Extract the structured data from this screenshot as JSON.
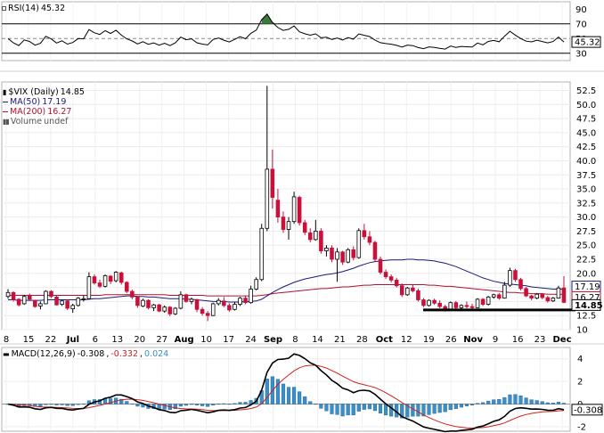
{
  "chart_data": [
    {
      "panel": "rsi",
      "type": "line",
      "title": "RSI(14)",
      "last_value": "45.32",
      "value_label": "45.32",
      "ticks": [
        "90",
        "70",
        "50",
        "30"
      ],
      "ylim": [
        20,
        100
      ],
      "overbought": 70,
      "oversold": 30,
      "colors": {
        "line": "#000000",
        "fill": "#3a7a3a"
      }
    },
    {
      "panel": "price",
      "type": "candlestick",
      "symbol": "$VIX",
      "title": "$VIX (Daily)",
      "last_value": "14.85",
      "legend": [
        {
          "label": "$VIX (Daily)",
          "value": "14.85",
          "color": "#000000",
          "icon": "candlestick-icon"
        },
        {
          "label": "MA(50)",
          "value": "17.19",
          "color": "#1a1a7a",
          "icon": "line-swatch"
        },
        {
          "label": "MA(200)",
          "value": "16.27",
          "color": "#b01030",
          "icon": "line-swatch"
        },
        {
          "label": "Volume",
          "value": "undef",
          "color": "#555555",
          "icon": "volume-bars-icon"
        }
      ],
      "y_ticks": [
        "52.5",
        "50.0",
        "47.5",
        "45.0",
        "42.5",
        "40.0",
        "37.5",
        "35.0",
        "32.5",
        "30.0",
        "27.5",
        "25.0",
        "22.5",
        "20.0",
        "17.5",
        "15.0",
        "12.5",
        "10"
      ],
      "value_labels": [
        {
          "text": "17.19",
          "kind": "ma50"
        },
        {
          "text": "16.27",
          "kind": "ma200"
        },
        {
          "text": "14.85",
          "kind": "last"
        }
      ],
      "ylim": [
        10,
        54
      ],
      "x_labels": [
        "8",
        "15",
        "22",
        "Jul",
        "6",
        "13",
        "20",
        "27",
        "Aug",
        "10",
        "17",
        "24",
        "Sep",
        "8",
        "14",
        "21",
        "28",
        "Oct",
        "12",
        "19",
        "26",
        "Nov",
        "9",
        "16",
        "23",
        "Dec"
      ],
      "bold_x_labels": [
        "Jul",
        "Aug",
        "Sep",
        "Oct",
        "Nov",
        "Dec"
      ],
      "support_line": 13.5,
      "colors": {
        "up": "#ffffff",
        "down": "#c8103a",
        "ma50": "#1a1a7a",
        "ma200": "#b01030",
        "support": "#000000"
      },
      "ohlc": [
        [
          15.9,
          17.2,
          15.5,
          16.6
        ],
        [
          16.6,
          16.8,
          15.0,
          15.3
        ],
        [
          15.4,
          15.6,
          14.1,
          14.4
        ],
        [
          14.6,
          16.2,
          14.4,
          15.9
        ],
        [
          16.0,
          16.4,
          15.1,
          15.4
        ],
        [
          15.2,
          15.3,
          13.9,
          14.1
        ],
        [
          14.2,
          15.0,
          13.6,
          14.6
        ],
        [
          14.6,
          17.0,
          14.5,
          16.8
        ],
        [
          16.8,
          17.0,
          15.6,
          15.9
        ],
        [
          15.8,
          16.0,
          14.3,
          14.4
        ],
        [
          14.5,
          15.3,
          14.2,
          15.1
        ],
        [
          15.1,
          15.4,
          13.5,
          13.8
        ],
        [
          13.7,
          14.6,
          13.0,
          14.3
        ],
        [
          14.3,
          15.8,
          14.1,
          15.6
        ],
        [
          15.5,
          16.1,
          15.0,
          15.5
        ],
        [
          15.5,
          20.2,
          15.4,
          19.4
        ],
        [
          19.4,
          19.8,
          18.0,
          18.3
        ],
        [
          18.3,
          18.9,
          17.4,
          17.7
        ],
        [
          17.7,
          19.8,
          17.5,
          19.6
        ],
        [
          19.5,
          19.7,
          18.1,
          18.6
        ],
        [
          18.7,
          20.4,
          18.4,
          20.2
        ],
        [
          20.1,
          20.3,
          18.0,
          18.4
        ],
        [
          18.4,
          18.6,
          16.5,
          16.8
        ],
        [
          16.8,
          17.1,
          15.4,
          15.8
        ],
        [
          15.8,
          15.9,
          13.9,
          14.3
        ],
        [
          14.2,
          15.5,
          14.0,
          15.2
        ],
        [
          15.2,
          15.4,
          13.6,
          13.9
        ],
        [
          13.9,
          14.6,
          13.3,
          14.4
        ],
        [
          14.4,
          14.6,
          13.1,
          13.3
        ],
        [
          13.3,
          14.3,
          13.0,
          14.0
        ],
        [
          14.0,
          14.2,
          12.4,
          12.8
        ],
        [
          12.8,
          14.0,
          12.6,
          13.8
        ],
        [
          13.8,
          16.8,
          13.6,
          16.2
        ],
        [
          16.2,
          16.4,
          14.8,
          15.0
        ],
        [
          15.0,
          15.7,
          14.5,
          15.4
        ],
        [
          15.3,
          15.5,
          13.1,
          13.6
        ],
        [
          13.6,
          14.0,
          12.5,
          12.9
        ],
        [
          12.9,
          13.3,
          11.5,
          12.5
        ],
        [
          12.5,
          14.8,
          12.4,
          14.6
        ],
        [
          14.6,
          15.6,
          14.3,
          15.2
        ],
        [
          15.1,
          15.8,
          14.0,
          14.3
        ],
        [
          14.3,
          14.7,
          13.2,
          13.5
        ],
        [
          13.6,
          14.9,
          13.4,
          14.5
        ],
        [
          14.5,
          15.8,
          14.2,
          15.6
        ],
        [
          15.6,
          16.0,
          14.5,
          14.8
        ],
        [
          14.8,
          17.8,
          14.6,
          17.2
        ],
        [
          17.2,
          19.3,
          17.0,
          18.9
        ],
        [
          18.9,
          28.8,
          18.6,
          28.0
        ],
        [
          28.0,
          53.3,
          27.5,
          38.5
        ],
        [
          38.5,
          42.0,
          31.5,
          33.5
        ],
        [
          33.0,
          35.0,
          29.0,
          30.0
        ],
        [
          30.0,
          31.0,
          27.2,
          27.8
        ],
        [
          27.8,
          30.0,
          26.0,
          29.2
        ],
        [
          29.2,
          34.5,
          28.8,
          33.6
        ],
        [
          33.5,
          33.8,
          28.5,
          29.0
        ],
        [
          29.0,
          29.5,
          26.8,
          27.3
        ],
        [
          27.2,
          28.0,
          25.5,
          26.0
        ],
        [
          26.0,
          29.5,
          25.8,
          27.5
        ],
        [
          27.5,
          28.0,
          23.5,
          24.0
        ],
        [
          24.0,
          25.0,
          23.0,
          24.5
        ],
        [
          24.5,
          25.0,
          22.0,
          22.5
        ],
        [
          22.5,
          24.5,
          18.5,
          23.8
        ],
        [
          23.8,
          24.0,
          21.5,
          22.0
        ],
        [
          22.0,
          24.5,
          21.8,
          24.2
        ],
        [
          24.2,
          24.8,
          22.3,
          22.8
        ],
        [
          22.8,
          28.0,
          22.6,
          27.6
        ],
        [
          27.6,
          28.8,
          26.0,
          26.5
        ],
        [
          26.5,
          27.5,
          25.0,
          25.5
        ],
        [
          25.5,
          25.8,
          22.0,
          22.5
        ],
        [
          22.5,
          23.0,
          19.8,
          20.2
        ],
        [
          20.2,
          20.7,
          19.0,
          19.4
        ],
        [
          19.4,
          19.8,
          18.4,
          18.8
        ],
        [
          18.8,
          19.2,
          17.5,
          17.8
        ],
        [
          17.8,
          18.2,
          15.8,
          16.2
        ],
        [
          16.2,
          17.6,
          16.0,
          17.4
        ],
        [
          17.4,
          18.0,
          16.6,
          16.9
        ],
        [
          16.9,
          17.3,
          15.0,
          15.3
        ],
        [
          15.3,
          15.6,
          14.0,
          14.3
        ],
        [
          14.3,
          15.4,
          14.1,
          15.2
        ],
        [
          15.2,
          15.5,
          14.4,
          14.7
        ],
        [
          14.7,
          15.2,
          13.8,
          14.1
        ],
        [
          14.1,
          14.4,
          13.2,
          13.5
        ],
        [
          13.5,
          15.0,
          13.4,
          14.8
        ],
        [
          14.8,
          15.1,
          13.6,
          13.9
        ],
        [
          13.9,
          14.5,
          13.5,
          14.3
        ],
        [
          14.3,
          15.0,
          13.8,
          14.1
        ],
        [
          14.1,
          14.6,
          13.7,
          13.9
        ],
        [
          13.9,
          15.6,
          13.8,
          15.4
        ],
        [
          15.4,
          15.6,
          14.2,
          14.5
        ],
        [
          14.5,
          16.0,
          14.3,
          15.8
        ],
        [
          15.8,
          16.4,
          15.5,
          16.2
        ],
        [
          16.2,
          16.5,
          15.3,
          15.6
        ],
        [
          15.6,
          18.5,
          15.5,
          17.9
        ],
        [
          17.9,
          21.0,
          17.6,
          20.5
        ],
        [
          20.5,
          20.8,
          18.5,
          18.9
        ],
        [
          18.9,
          19.2,
          17.0,
          17.3
        ],
        [
          17.3,
          17.6,
          15.8,
          16.0
        ],
        [
          16.0,
          16.2,
          15.2,
          15.6
        ],
        [
          15.6,
          16.5,
          15.4,
          16.3
        ],
        [
          16.3,
          16.5,
          15.4,
          15.7
        ],
        [
          15.7,
          16.0,
          14.8,
          15.1
        ],
        [
          15.1,
          15.8,
          14.9,
          15.6
        ],
        [
          15.6,
          17.8,
          15.5,
          17.4
        ],
        [
          17.4,
          19.5,
          14.7,
          14.85
        ]
      ],
      "ma50": [
        15.3,
        15.3,
        15.2,
        15.2,
        15.2,
        15.2,
        15.2,
        15.3,
        15.3,
        15.3,
        15.3,
        15.3,
        15.3,
        15.3,
        15.3,
        15.4,
        15.5,
        15.5,
        15.6,
        15.7,
        15.8,
        15.9,
        16.0,
        16.0,
        15.9,
        15.9,
        15.8,
        15.8,
        15.7,
        15.6,
        15.5,
        15.5,
        15.5,
        15.4,
        15.4,
        15.3,
        15.2,
        15.1,
        15.0,
        15.0,
        15.0,
        14.9,
        14.9,
        14.9,
        15.0,
        15.0,
        15.1,
        15.4,
        16.0,
        16.6,
        17.1,
        17.6,
        18.0,
        18.4,
        18.7,
        19.0,
        19.2,
        19.4,
        19.6,
        19.8,
        19.9,
        20.1,
        20.3,
        20.6,
        20.9,
        21.3,
        21.6,
        21.9,
        22.1,
        22.2,
        22.3,
        22.4,
        22.4,
        22.4,
        22.5,
        22.5,
        22.4,
        22.4,
        22.3,
        22.2,
        22.0,
        21.8,
        21.5,
        21.2,
        20.8,
        20.4,
        20.0,
        19.6,
        19.2,
        18.9,
        18.6,
        18.4,
        18.2,
        18.1,
        18.0,
        17.9,
        17.8,
        17.6,
        17.5,
        17.4,
        17.3,
        17.2,
        17.2,
        17.19
      ],
      "ma200": [
        16.1,
        16.1,
        16.1,
        16.1,
        16.1,
        16.1,
        16.1,
        16.1,
        16.1,
        16.1,
        16.1,
        16.1,
        16.1,
        16.1,
        16.1,
        16.1,
        16.1,
        16.1,
        16.2,
        16.2,
        16.2,
        16.2,
        16.2,
        16.2,
        16.2,
        16.2,
        16.2,
        16.2,
        16.2,
        16.2,
        16.1,
        16.1,
        16.1,
        16.1,
        16.1,
        16.1,
        16.1,
        16.0,
        16.0,
        16.0,
        16.0,
        16.0,
        16.0,
        16.0,
        16.0,
        16.0,
        16.0,
        16.1,
        16.2,
        16.4,
        16.5,
        16.6,
        16.7,
        16.8,
        16.9,
        17.0,
        17.1,
        17.2,
        17.3,
        17.3,
        17.4,
        17.5,
        17.6,
        17.6,
        17.7,
        17.8,
        17.9,
        17.9,
        18.0,
        18.0,
        18.0,
        18.0,
        18.0,
        18.0,
        18.0,
        18.0,
        18.0,
        18.0,
        17.9,
        17.9,
        17.8,
        17.7,
        17.7,
        17.6,
        17.5,
        17.4,
        17.3,
        17.2,
        17.1,
        17.0,
        16.9,
        16.8,
        16.7,
        16.6,
        16.6,
        16.5,
        16.5,
        16.4,
        16.4,
        16.4,
        16.3,
        16.3,
        16.3,
        16.27
      ]
    },
    {
      "panel": "macd",
      "type": "line",
      "title": "MACD(12,26,9)",
      "values": {
        "macd": "-0.308",
        "signal": "-0.332",
        "histogram": "0.024"
      },
      "value_label": "-0.308",
      "ticks": [
        "4",
        "2",
        "0",
        "-2"
      ],
      "ylim": [
        -2.4,
        5
      ],
      "colors": {
        "macd": "#000000",
        "signal": "#d02020",
        "histogram": "#3a8fc8"
      }
    }
  ]
}
